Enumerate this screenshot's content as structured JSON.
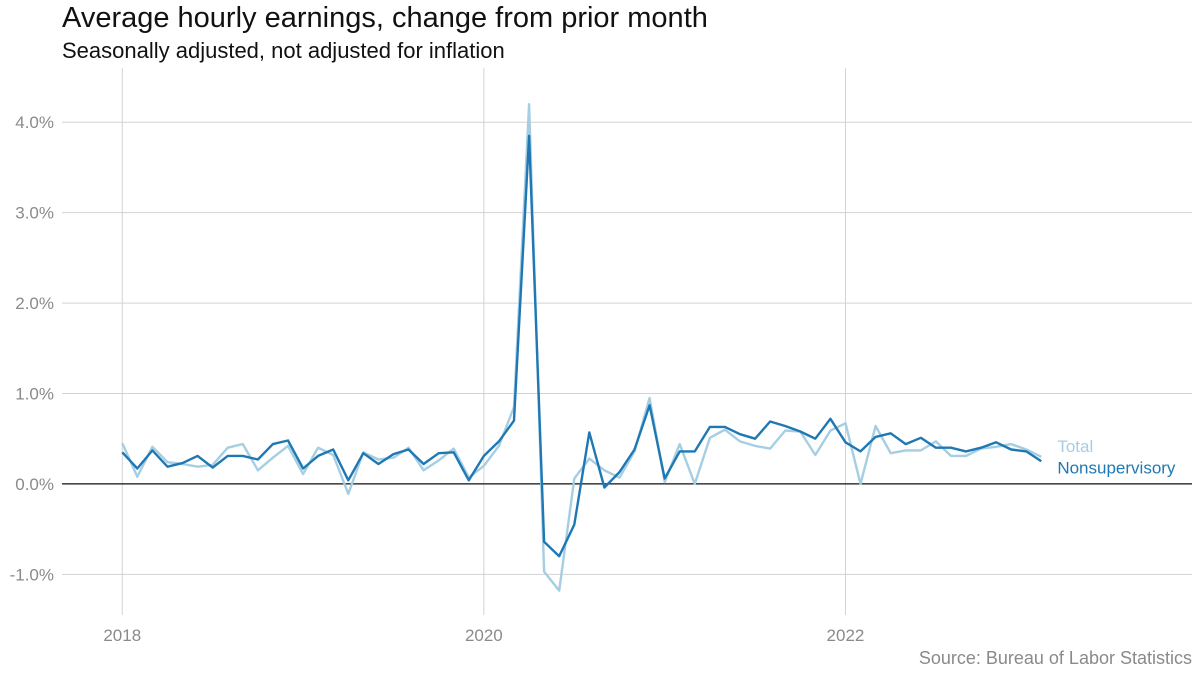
{
  "title": "Average hourly earnings, change from prior month",
  "subtitle": "Seasonally adjusted, not adjusted for inflation",
  "source": "Source: Bureau of Labor Statistics",
  "chart_data": {
    "type": "line",
    "title": "Average hourly earnings, change from prior month",
    "subtitle": "Seasonally adjusted, not adjusted for inflation",
    "xlabel": "",
    "ylabel": "",
    "x_start": "2018-01",
    "x_end": "2022-12",
    "x_ticks": [
      "2018",
      "2020",
      "2022"
    ],
    "xlim": [
      "2017-09",
      "2023-12"
    ],
    "y_ticks": [
      "-1.0%",
      "0.0%",
      "1.0%",
      "2.0%",
      "3.0%",
      "4.0%"
    ],
    "y_tick_values": [
      -1.0,
      0.0,
      1.0,
      2.0,
      3.0,
      4.0
    ],
    "ylim": [
      -1.45,
      4.6
    ],
    "grid": true,
    "zero_line": true,
    "legend": "direct labels at line ends",
    "series": [
      {
        "name": "Total",
        "color": "#a6cee3",
        "values": [
          0.45,
          0.08,
          0.41,
          0.24,
          0.22,
          0.19,
          0.21,
          0.4,
          0.44,
          0.15,
          0.29,
          0.42,
          0.11,
          0.4,
          0.32,
          -0.11,
          0.35,
          0.27,
          0.29,
          0.4,
          0.15,
          0.26,
          0.39,
          0.07,
          0.2,
          0.42,
          0.85,
          4.2,
          -0.97,
          -1.18,
          0.06,
          0.28,
          0.15,
          0.07,
          0.36,
          0.95,
          0.02,
          0.44,
          0.0,
          0.51,
          0.6,
          0.47,
          0.42,
          0.39,
          0.59,
          0.58,
          0.32,
          0.59,
          0.67,
          0.0,
          0.64,
          0.34,
          0.37,
          0.37,
          0.47,
          0.31,
          0.31,
          0.39,
          0.41,
          0.44,
          0.38,
          0.3
        ]
      },
      {
        "name": "Nonsupervisory",
        "color": "#1f78b4",
        "values": [
          0.35,
          0.17,
          0.37,
          0.19,
          0.23,
          0.31,
          0.18,
          0.31,
          0.31,
          0.27,
          0.44,
          0.48,
          0.17,
          0.31,
          0.38,
          0.04,
          0.34,
          0.22,
          0.33,
          0.38,
          0.22,
          0.34,
          0.35,
          0.04,
          0.31,
          0.47,
          0.7,
          3.85,
          -0.64,
          -0.8,
          -0.45,
          0.57,
          -0.04,
          0.13,
          0.38,
          0.87,
          0.06,
          0.36,
          0.36,
          0.63,
          0.63,
          0.55,
          0.5,
          0.69,
          0.64,
          0.58,
          0.5,
          0.72,
          0.46,
          0.36,
          0.52,
          0.56,
          0.44,
          0.51,
          0.4,
          0.4,
          0.36,
          0.4,
          0.46,
          0.38,
          0.36,
          0.25
        ]
      }
    ]
  }
}
